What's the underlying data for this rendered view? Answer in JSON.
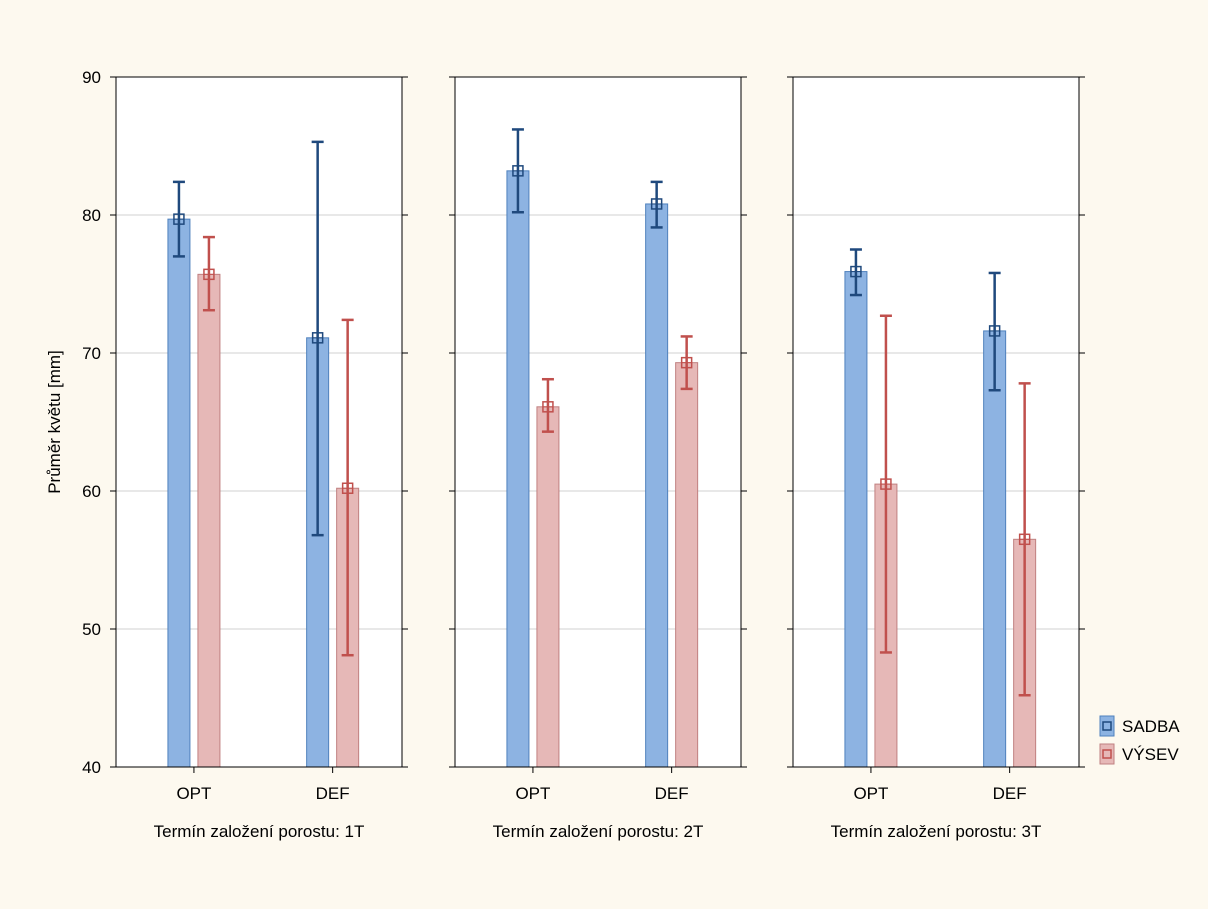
{
  "chart_data": {
    "type": "bar",
    "ylabel": "Průměr květu [mm]",
    "ylim": [
      40,
      90
    ],
    "yticks": [
      40,
      50,
      60,
      70,
      80,
      90
    ],
    "grid": true,
    "legend_position": "right",
    "categories": [
      "OPT",
      "DEF"
    ],
    "series": [
      {
        "name": "SADBA",
        "color": "#8db3e2",
        "error_color": "#1f497d"
      },
      {
        "name": "VÝSEV",
        "color": "#e6b8b7",
        "error_color": "#c0504d"
      }
    ],
    "panels": [
      {
        "label": "Termín založení porostu: 1T",
        "bars": {
          "SADBA": [
            {
              "mean": 79.7,
              "low": 77.0,
              "high": 82.4
            },
            {
              "mean": 71.1,
              "low": 56.8,
              "high": 85.3
            }
          ],
          "VÝSEV": [
            {
              "mean": 75.7,
              "low": 73.1,
              "high": 78.4
            },
            {
              "mean": 60.2,
              "low": 48.1,
              "high": 72.4
            }
          ]
        }
      },
      {
        "label": "Termín založení porostu: 2T",
        "bars": {
          "SADBA": [
            {
              "mean": 83.2,
              "low": 80.2,
              "high": 86.2
            },
            {
              "mean": 80.8,
              "low": 79.1,
              "high": 82.4
            }
          ],
          "VÝSEV": [
            {
              "mean": 66.1,
              "low": 64.3,
              "high": 68.1
            },
            {
              "mean": 69.3,
              "low": 67.4,
              "high": 71.2
            }
          ]
        }
      },
      {
        "label": "Termín založení porostu: 3T",
        "bars": {
          "SADBA": [
            {
              "mean": 75.9,
              "low": 74.2,
              "high": 77.5
            },
            {
              "mean": 71.6,
              "low": 67.3,
              "high": 75.8
            }
          ],
          "VÝSEV": [
            {
              "mean": 60.5,
              "low": 48.3,
              "high": 72.7
            },
            {
              "mean": 56.5,
              "low": 45.2,
              "high": 67.8
            }
          ]
        }
      }
    ]
  }
}
